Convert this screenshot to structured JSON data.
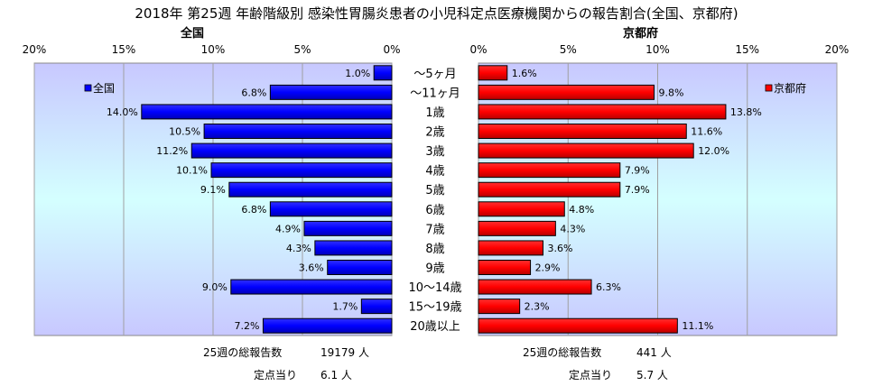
{
  "title": "2018年 第25週 年齢階級別 感染性胃腸炎患者の小児科定点医療機関からの報告割合(全国、京都府)",
  "chart_data": {
    "type": "bar",
    "categories": [
      "～5ヶ月",
      "～11ヶ月",
      "1歳",
      "2歳",
      "3歳",
      "4歳",
      "5歳",
      "6歳",
      "7歳",
      "8歳",
      "9歳",
      "10～14歳",
      "15～19歳",
      "20歳以上"
    ],
    "panels": [
      {
        "title": "全国",
        "legend": "全国",
        "color": "#0000FF",
        "direction": "left",
        "xlim": [
          0,
          20
        ],
        "ticks": [
          "20%",
          "15%",
          "10%",
          "5%",
          "0%"
        ],
        "tick_values": [
          20,
          15,
          10,
          5,
          0
        ],
        "values": [
          1.0,
          6.8,
          14.0,
          10.5,
          11.2,
          10.1,
          9.1,
          6.8,
          4.9,
          4.3,
          3.6,
          9.0,
          1.7,
          7.2
        ],
        "labels": [
          "1.0%",
          "6.8%",
          "14.0%",
          "10.5%",
          "11.2%",
          "10.1%",
          "9.1%",
          "6.8%",
          "4.9%",
          "4.3%",
          "3.6%",
          "9.0%",
          "1.7%",
          "7.2%"
        ]
      },
      {
        "title": "京都府",
        "legend": "京都府",
        "color": "#FF0000",
        "direction": "right",
        "xlim": [
          0,
          20
        ],
        "ticks": [
          "0%",
          "5%",
          "10%",
          "15%",
          "20%"
        ],
        "tick_values": [
          0,
          5,
          10,
          15,
          20
        ],
        "values": [
          1.6,
          9.8,
          13.8,
          11.6,
          12.0,
          7.9,
          7.9,
          4.8,
          4.3,
          3.6,
          2.9,
          6.3,
          2.3,
          11.1
        ],
        "labels": [
          "1.6%",
          "9.8%",
          "13.8%",
          "11.6%",
          "12.0%",
          "7.9%",
          "7.9%",
          "4.8%",
          "4.3%",
          "3.6%",
          "2.9%",
          "6.3%",
          "2.3%",
          "11.1%"
        ]
      }
    ],
    "grid": true
  },
  "footer": {
    "national": {
      "total_label": "25週の総報告数",
      "total_value": "19179 人",
      "per_label": "定点当り",
      "per_value": "6.1 人"
    },
    "kyoto": {
      "total_label": "25週の総報告数",
      "total_value": "441 人",
      "per_label": "定点当り",
      "per_value": "5.7 人"
    }
  }
}
